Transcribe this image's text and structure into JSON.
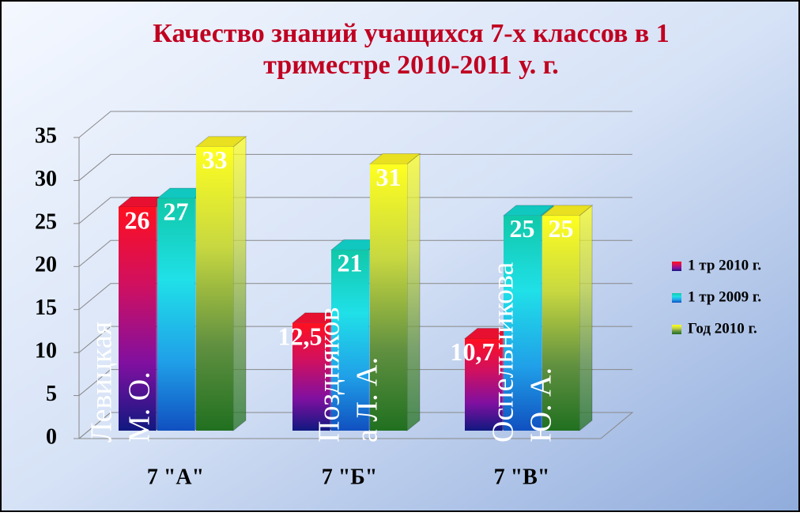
{
  "chart_data": {
    "type": "bar3d",
    "title": [
      "Качество знаний учащихся 7-х классов в 1",
      "триместре 2010-2011 у. г."
    ],
    "categories": [
      "7 \"А\"",
      "7 \"Б\"",
      "7 \"В\""
    ],
    "series": [
      {
        "name": "1 тр 2010 г.",
        "color": "#e81030",
        "values": [
          26,
          12.5,
          10.7
        ],
        "value_labels": [
          "26",
          "12,5",
          "10,7"
        ]
      },
      {
        "name": "1 тр 2009 г.",
        "color": "#10c8c0",
        "values": [
          27,
          21,
          25
        ]
      },
      {
        "name": "Год 2010 г.",
        "color": "#e8e020",
        "values": [
          33,
          31,
          25
        ]
      }
    ],
    "annotations": [
      [
        "Левицкая",
        "М. О."
      ],
      [
        "Поздняков",
        "а Л. А."
      ],
      [
        "Оспельникова",
        "Ю. А."
      ]
    ],
    "ylim": [
      0,
      35
    ],
    "yticks": [
      0,
      5,
      10,
      15,
      20,
      25,
      30,
      35
    ],
    "grid": true,
    "legend": "right"
  }
}
